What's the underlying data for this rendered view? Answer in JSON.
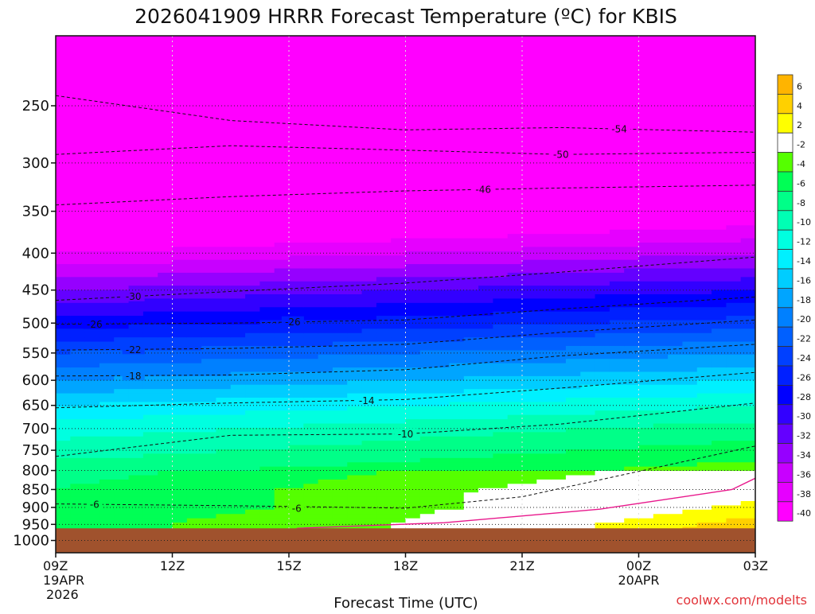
{
  "chart_data": {
    "type": "heatmap",
    "title": "2026041909 HRRR Forecast Temperature (ºC) for KBIS",
    "xlabel": "Forecast Time (UTC)",
    "ylabel": "",
    "x_ticks": [
      {
        "label": "09Z",
        "sub1": "19APR",
        "sub2": "2026"
      },
      {
        "label": "12Z",
        "sub1": "",
        "sub2": ""
      },
      {
        "label": "15Z",
        "sub1": "",
        "sub2": ""
      },
      {
        "label": "18Z",
        "sub1": "",
        "sub2": ""
      },
      {
        "label": "21Z",
        "sub1": "",
        "sub2": ""
      },
      {
        "label": "00Z",
        "sub1": "20APR",
        "sub2": ""
      },
      {
        "label": "03Z",
        "sub1": "",
        "sub2": ""
      }
    ],
    "y_ticks": [
      250,
      300,
      350,
      400,
      450,
      500,
      550,
      600,
      650,
      700,
      750,
      800,
      850,
      900,
      950,
      1000
    ],
    "y_axis": "pressure (hPa), log scale, inverted",
    "ylim": [
      200,
      1040
    ],
    "xlim_hours": [
      0,
      18
    ],
    "grid": true,
    "surface_pressure_hPa": 962,
    "colorbar": {
      "ticks": [
        6,
        4,
        2,
        -2,
        -4,
        -6,
        -8,
        -10,
        -12,
        -14,
        -16,
        -18,
        -20,
        -22,
        -24,
        -26,
        -28,
        -30,
        -32,
        -34,
        -36,
        -38,
        -40
      ],
      "colors": [
        "#ffb400",
        "#ffd000",
        "#ffff00",
        "#ffffff",
        "#55ff00",
        "#00ff55",
        "#00ff88",
        "#00ffb4",
        "#00ffe0",
        "#00f0ff",
        "#00cdff",
        "#00a5ff",
        "#0080ff",
        "#0060ff",
        "#0040ff",
        "#0020ff",
        "#0000ff",
        "#3200ff",
        "#6400ff",
        "#9600ff",
        "#c800ff",
        "#e600ff",
        "#ff00ff"
      ]
    },
    "temperature_profile": [
      {
        "p": 250,
        "t": -58
      },
      {
        "p": 300,
        "t": -50
      },
      {
        "p": 350,
        "t": -44
      },
      {
        "p": 400,
        "t": -38
      },
      {
        "p": 450,
        "t": -32
      },
      {
        "p": 500,
        "t": -27
      },
      {
        "p": 550,
        "t": -22
      },
      {
        "p": 600,
        "t": -18
      },
      {
        "p": 650,
        "t": -14
      },
      {
        "p": 700,
        "t": -11
      },
      {
        "p": 750,
        "t": -9
      },
      {
        "p": 800,
        "t": -7
      },
      {
        "p": 850,
        "t": -6
      },
      {
        "p": 900,
        "t": -6
      },
      {
        "p": 950,
        "t": -5
      }
    ],
    "warming_trend_per_hour": 0.22,
    "contours": [
      {
        "label": "-54",
        "values": [
          {
            "x": 0,
            "p": 242
          },
          {
            "x": 4.5,
            "p": 262
          },
          {
            "x": 9,
            "p": 270
          },
          {
            "x": 13,
            "p": 268
          },
          {
            "x": 18,
            "p": 272
          }
        ],
        "label_at": 14.5
      },
      {
        "label": "-50",
        "values": [
          {
            "x": 0,
            "p": 292
          },
          {
            "x": 4.5,
            "p": 284
          },
          {
            "x": 9,
            "p": 288
          },
          {
            "x": 13,
            "p": 292
          },
          {
            "x": 18,
            "p": 290
          }
        ],
        "label_at": 13
      },
      {
        "label": "-46",
        "values": [
          {
            "x": 0,
            "p": 343
          },
          {
            "x": 4.5,
            "p": 334
          },
          {
            "x": 9,
            "p": 328
          },
          {
            "x": 13,
            "p": 325
          },
          {
            "x": 18,
            "p": 322
          }
        ],
        "label_at": 11
      },
      {
        "label": "-30",
        "values": [
          {
            "x": 0,
            "p": 465
          },
          {
            "x": 4.5,
            "p": 452
          },
          {
            "x": 9,
            "p": 440
          },
          {
            "x": 13,
            "p": 425
          },
          {
            "x": 18,
            "p": 405
          }
        ],
        "label_at": 2
      },
      {
        "label": "-26",
        "values": [
          {
            "x": 0,
            "p": 502
          },
          {
            "x": 4.5,
            "p": 500
          },
          {
            "x": 9,
            "p": 495
          },
          {
            "x": 13,
            "p": 478
          },
          {
            "x": 18,
            "p": 460
          }
        ],
        "label_at": 1
      },
      {
        "label": "-26",
        "values": [],
        "label_at": 6.1,
        "label_p": 498
      },
      {
        "label": "-22",
        "values": [
          {
            "x": 0,
            "p": 545
          },
          {
            "x": 4.5,
            "p": 542
          },
          {
            "x": 9,
            "p": 535
          },
          {
            "x": 13,
            "p": 515
          },
          {
            "x": 18,
            "p": 495
          }
        ],
        "label_at": 2
      },
      {
        "label": "-18",
        "values": [
          {
            "x": 0,
            "p": 592
          },
          {
            "x": 4.5,
            "p": 590
          },
          {
            "x": 9,
            "p": 580
          },
          {
            "x": 13,
            "p": 555
          },
          {
            "x": 18,
            "p": 535
          }
        ],
        "label_at": 2
      },
      {
        "label": "-14",
        "values": [
          {
            "x": 0,
            "p": 655
          },
          {
            "x": 4.5,
            "p": 645
          },
          {
            "x": 9,
            "p": 638
          },
          {
            "x": 13,
            "p": 615
          },
          {
            "x": 18,
            "p": 585
          }
        ],
        "label_at": 8
      },
      {
        "label": "-10",
        "values": [
          {
            "x": 0,
            "p": 765
          },
          {
            "x": 4.5,
            "p": 715
          },
          {
            "x": 9,
            "p": 712
          },
          {
            "x": 13,
            "p": 690
          },
          {
            "x": 18,
            "p": 645
          }
        ],
        "label_at": 9
      },
      {
        "label": "-6",
        "values": [
          {
            "x": 0,
            "p": 890
          },
          {
            "x": 4.5,
            "p": 895
          },
          {
            "x": 9,
            "p": 902
          },
          {
            "x": 12,
            "p": 870
          },
          {
            "x": 18,
            "p": 740
          }
        ],
        "label_at": 1
      },
      {
        "label": "-6",
        "values": [],
        "label_at": 6.2,
        "label_p": 902
      }
    ],
    "freezing_line": [
      {
        "x": 6.2,
        "p": 962
      },
      {
        "x": 10,
        "p": 945
      },
      {
        "x": 14,
        "p": 905
      },
      {
        "x": 17.4,
        "p": 850
      },
      {
        "x": 18,
        "p": 820
      }
    ],
    "credit": "coolwx.com/modelts"
  }
}
